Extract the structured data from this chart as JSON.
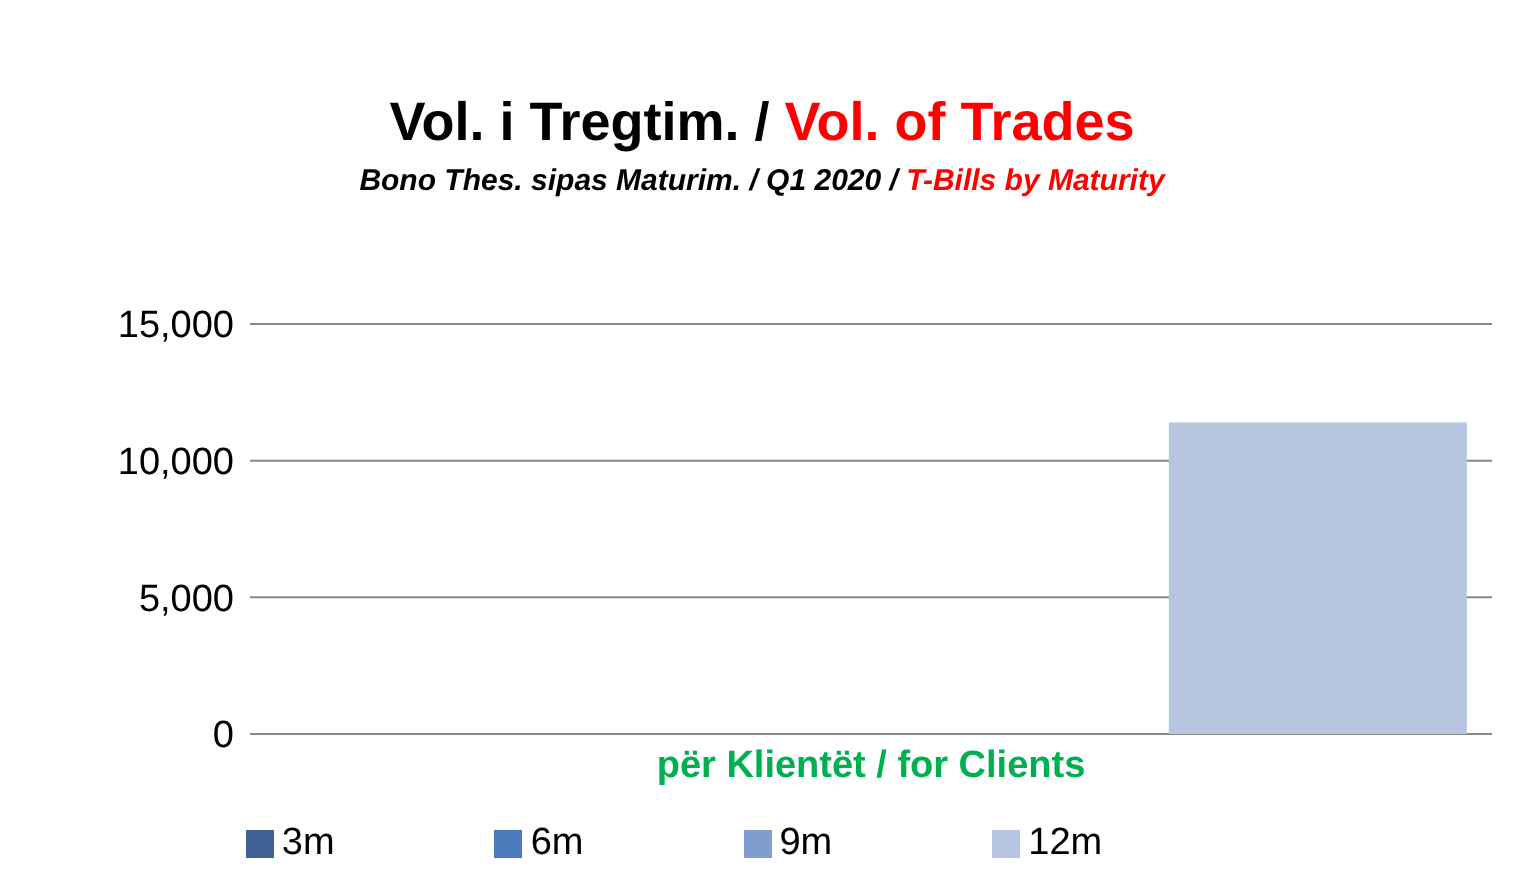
{
  "chart_data": {
    "type": "bar",
    "title": "Vol. i Tregtim. / Vol. of Trades",
    "subtitle": "Bono Thes. sipas Maturim. / Q1 2020 / T-Bills by Maturity",
    "categories": [
      "për Klientët /  for Clients"
    ],
    "series": [
      {
        "name": "3m",
        "color": "#3f6394",
        "values": [
          0
        ]
      },
      {
        "name": "6m",
        "color": "#4c7abb",
        "values": [
          0
        ]
      },
      {
        "name": "9m",
        "color": "#809dcf",
        "values": [
          0
        ]
      },
      {
        "name": "12m",
        "color": "#b6c5e0",
        "values": [
          11400
        ]
      }
    ],
    "ylim": [
      0,
      15000
    ],
    "yticks": [
      0,
      {
        "value": 5000,
        "label": "5,000"
      },
      {
        "value": 10000,
        "label": "10,000"
      },
      {
        "value": 15000,
        "label": "15,000"
      }
    ],
    "grid": "y",
    "legend": "bottom"
  }
}
